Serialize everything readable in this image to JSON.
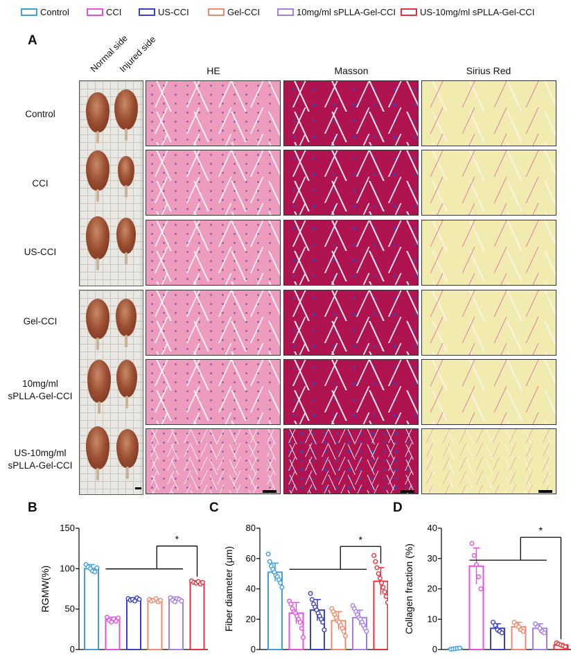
{
  "legend": [
    {
      "label": "Control",
      "color": "#3f9de0"
    },
    {
      "label": "CCI",
      "color": "#e84fe0"
    },
    {
      "label": "US-CCI",
      "color": "#3a3fc8"
    },
    {
      "label": "Gel-CCI",
      "color": "#f08a6e"
    },
    {
      "label": "10mg/ml sPLLA-Gel-CCI",
      "color": "#a77ee8"
    },
    {
      "label": "US-10mg/ml sPLLA-Gel-CCI",
      "color": "#e8303a"
    }
  ],
  "panel_a": {
    "letter": "A",
    "side_labels": [
      "Normal side",
      "Injured side"
    ],
    "columns": [
      "HE",
      "Masson",
      "Sirius Red"
    ],
    "rows": [
      "Control",
      "CCI",
      "US-CCI",
      "Gel-CCI",
      "10mg/ml\nsPLLA-Gel-CCI",
      "US-10mg/ml\nsPLLA-Gel-CCI"
    ]
  },
  "chart_data": [
    {
      "panel": "B",
      "type": "bar",
      "ylabel": "RGMW(%)",
      "ylim": [
        0,
        150
      ],
      "yticks": [
        0,
        50,
        100,
        150
      ],
      "categories": [
        "Control",
        "CCI",
        "US-CCI",
        "Gel-CCI",
        "10mg/ml sPLLA-Gel-CCI",
        "US-10mg/ml sPLLA-Gel-CCI"
      ],
      "values": [
        100,
        37,
        62,
        61,
        62,
        83
      ],
      "errors": [
        5,
        3,
        2,
        2,
        3,
        2
      ],
      "points": [
        [
          105,
          102,
          100,
          97,
          96,
          101
        ],
        [
          40,
          36,
          34,
          38,
          35,
          39
        ],
        [
          63,
          61,
          62,
          60,
          64,
          62
        ],
        [
          62,
          60,
          61,
          63,
          59,
          61
        ],
        [
          64,
          61,
          59,
          63,
          62,
          60
        ],
        [
          85,
          83,
          82,
          84,
          81,
          83
        ]
      ],
      "significance": {
        "label": "*",
        "bracket_to": 5,
        "group": [
          1,
          4
        ],
        "level": 128
      }
    },
    {
      "panel": "C",
      "type": "bar",
      "ylabel": "Fiber diameter (μm)",
      "ylim": [
        0,
        80
      ],
      "yticks": [
        0,
        20,
        40,
        60,
        80
      ],
      "categories": [
        "Control",
        "CCI",
        "US-CCI",
        "Gel-CCI",
        "10mg/ml sPLLA-Gel-CCI",
        "US-10mg/ml sPLLA-Gel-CCI"
      ],
      "values": [
        51,
        24,
        26,
        19,
        21,
        45
      ],
      "errors": [
        6,
        7,
        7,
        6,
        5,
        9
      ],
      "points": [
        [
          63,
          58,
          55,
          53,
          51,
          49,
          48,
          46,
          44,
          41
        ],
        [
          32,
          30,
          27,
          25,
          24,
          22,
          20,
          18,
          14,
          8
        ],
        [
          37,
          33,
          30,
          28,
          26,
          24,
          22,
          20,
          18,
          13
        ],
        [
          27,
          25,
          23,
          21,
          19,
          18,
          16,
          14,
          12,
          9
        ],
        [
          29,
          27,
          25,
          23,
          21,
          20,
          18,
          16,
          14,
          12
        ],
        [
          62,
          58,
          54,
          50,
          47,
          44,
          41,
          38,
          35,
          31
        ]
      ],
      "significance": {
        "label": "*",
        "bracket_to": 5,
        "group": [
          1,
          4
        ],
        "level": 68
      }
    },
    {
      "panel": "D",
      "type": "bar",
      "ylabel": "Collagen fraction (%)",
      "ylim": [
        0,
        40
      ],
      "yticks": [
        0,
        10,
        20,
        30,
        40
      ],
      "categories": [
        "Control",
        "CCI",
        "US-CCI",
        "Gel-CCI",
        "10mg/ml sPLLA-Gel-CCI",
        "US-10mg/ml sPLLA-Gel-CCI"
      ],
      "values": [
        0.3,
        27.5,
        7,
        7.5,
        7,
        1.5
      ],
      "errors": [
        0.2,
        6,
        1.5,
        1.5,
        1.5,
        0.5
      ],
      "points": [
        [
          0.1,
          0.2,
          0.3,
          0.4,
          0.5
        ],
        [
          35,
          31,
          28,
          24,
          20
        ],
        [
          9,
          8,
          6.5,
          6,
          5.5
        ],
        [
          9,
          8,
          7.5,
          6.5,
          6
        ],
        [
          8.5,
          7.5,
          7,
          6,
          5.5
        ],
        [
          2.2,
          1.8,
          1.5,
          1.2,
          0.9
        ]
      ],
      "significance": {
        "label": "*",
        "bracket_to": 5,
        "group": [
          1,
          4
        ],
        "level": 37
      }
    }
  ]
}
